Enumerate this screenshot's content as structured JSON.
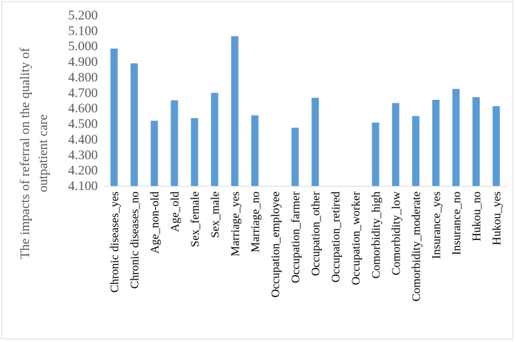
{
  "chart_data": {
    "type": "bar",
    "ylabel_lines": [
      "The impacts of  referral on the quality of",
      "outpatient care"
    ],
    "ylim": [
      4.1,
      5.2
    ],
    "yticks": [
      "4.100",
      "4.200",
      "4.300",
      "4.400",
      "4.500",
      "4.600",
      "4.700",
      "4.800",
      "4.900",
      "5.000",
      "5.100",
      "5.200"
    ],
    "grid": false,
    "bar_color": "#5b9bd5",
    "categories": [
      "Chronic diseases_yes",
      "Chronic diseases_no",
      "Age_non-old",
      "Age_old",
      "Sex_female",
      "Sex_male",
      "Marriage_yes",
      "Marriage_no",
      "Occupation_employee",
      "Occupation_farmer",
      "Occupation_other",
      "Occupation_retired",
      "Occupation_worker",
      "Comorbidity_high",
      "Comorbidity_low",
      "Comorbidity_moderate",
      "Insurance_yes",
      "Insurance_no",
      "Hukou_no",
      "Hukou_yes"
    ],
    "values": [
      4.985,
      4.89,
      4.52,
      4.652,
      4.537,
      4.7,
      5.065,
      4.555,
      null,
      4.475,
      4.668,
      null,
      null,
      4.508,
      4.634,
      4.55,
      4.655,
      4.725,
      4.672,
      4.614
    ]
  }
}
